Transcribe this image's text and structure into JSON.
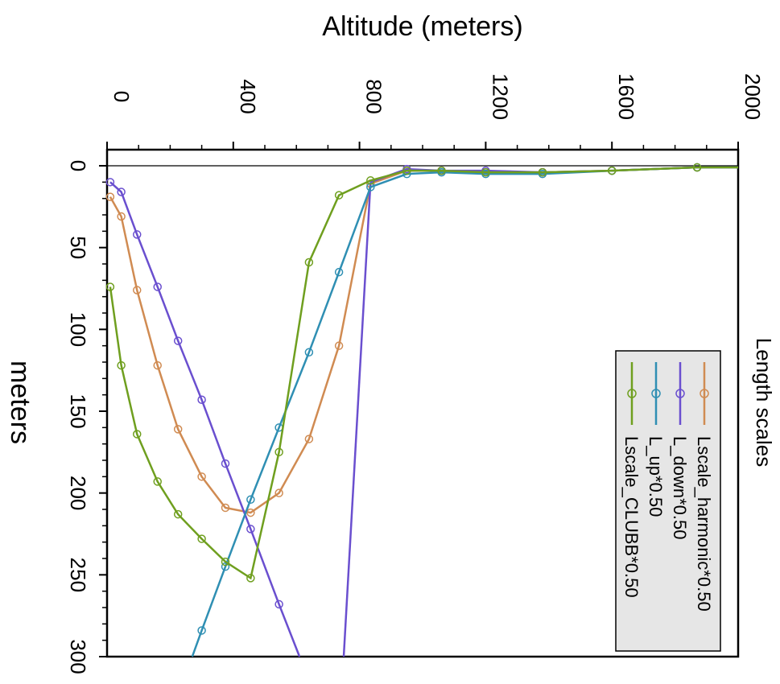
{
  "chart_data": {
    "type": "line",
    "title": "Length scales",
    "xlabel": "Altitude (meters)",
    "ylabel": "meters",
    "xlim": [
      0,
      2000
    ],
    "ylim": [
      -10,
      300
    ],
    "xticks": [
      "0",
      "400",
      "800",
      "1200",
      "1600",
      "2000"
    ],
    "yticks": [
      "0",
      "50",
      "100",
      "150",
      "200",
      "250",
      "300"
    ],
    "grid": false,
    "legend_position": "bottom-right",
    "series": [
      {
        "name": "Lscale_harmonic*0.50",
        "color": "#d08b52",
        "points": [
          [
            10,
            19
          ],
          [
            45,
            31
          ],
          [
            95,
            76
          ],
          [
            160,
            122
          ],
          [
            225,
            161
          ],
          [
            300,
            190
          ],
          [
            375,
            209
          ],
          [
            455,
            212
          ],
          [
            545,
            200
          ],
          [
            640,
            167
          ],
          [
            735,
            110
          ],
          [
            835,
            11
          ],
          [
            950,
            3
          ],
          [
            1060,
            3
          ],
          [
            1200,
            4
          ],
          [
            1380,
            4
          ],
          [
            1600,
            3
          ],
          [
            1870,
            1
          ],
          [
            2000,
            1
          ]
        ]
      },
      {
        "name": "L_down*0.50",
        "color": "#6a4fcf",
        "points": [
          [
            10,
            10
          ],
          [
            45,
            16
          ],
          [
            95,
            42
          ],
          [
            160,
            74
          ],
          [
            225,
            107
          ],
          [
            300,
            143
          ],
          [
            375,
            182
          ],
          [
            455,
            222
          ],
          [
            545,
            268
          ],
          [
            610,
            300
          ]
        ],
        "extra_line": [
          [
            750,
            300
          ],
          [
            835,
            10
          ]
        ],
        "tail": [
          [
            835,
            10
          ],
          [
            950,
            2
          ],
          [
            1060,
            3
          ],
          [
            1200,
            3
          ],
          [
            1380,
            4
          ],
          [
            1600,
            3
          ],
          [
            1870,
            1
          ],
          [
            2000,
            1
          ]
        ]
      },
      {
        "name": "L_up*0.50",
        "color": "#2f8fb3",
        "points": [
          [
            270,
            300
          ],
          [
            300,
            284
          ],
          [
            375,
            245
          ],
          [
            455,
            204
          ],
          [
            545,
            160
          ],
          [
            640,
            114
          ],
          [
            735,
            65
          ],
          [
            835,
            13
          ],
          [
            950,
            5
          ],
          [
            1060,
            4
          ],
          [
            1200,
            5
          ],
          [
            1380,
            5
          ],
          [
            1600,
            3
          ],
          [
            1870,
            1
          ],
          [
            2000,
            1
          ]
        ]
      },
      {
        "name": "Lscale_CLUBB*0.50",
        "color": "#6f9f1f",
        "points": [
          [
            10,
            74
          ],
          [
            45,
            122
          ],
          [
            95,
            164
          ],
          [
            160,
            193
          ],
          [
            225,
            213
          ],
          [
            300,
            228
          ],
          [
            375,
            242
          ],
          [
            455,
            252
          ],
          [
            545,
            175
          ],
          [
            640,
            59
          ],
          [
            735,
            18
          ],
          [
            835,
            9
          ],
          [
            950,
            3
          ],
          [
            1060,
            3
          ],
          [
            1200,
            4
          ],
          [
            1380,
            4
          ],
          [
            1600,
            3
          ],
          [
            1870,
            1
          ],
          [
            2000,
            1
          ]
        ]
      }
    ]
  }
}
